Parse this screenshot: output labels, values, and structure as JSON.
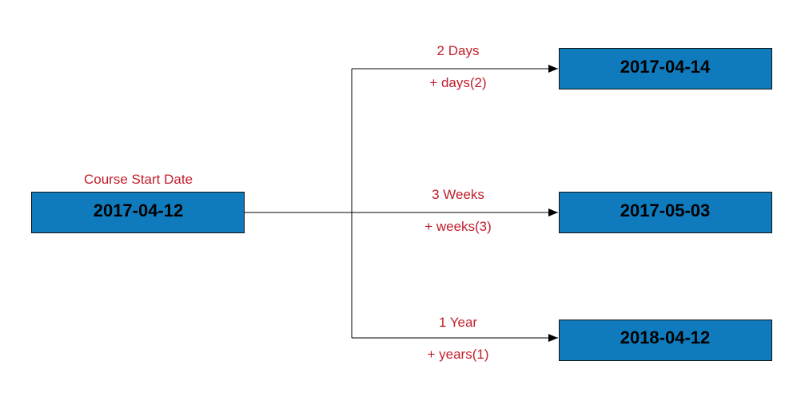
{
  "colors": {
    "box_fill": "#0f7bbd",
    "box_border": "#111111",
    "box_text": "#000000",
    "label": "#c0202e",
    "connector": "#000000"
  },
  "source": {
    "label": "Course Start Date",
    "date": "2017-04-12"
  },
  "targets": [
    {
      "date": "2017-04-14",
      "label_top": "2 Days",
      "label_bottom": "+ days(2)"
    },
    {
      "date": "2017-05-03",
      "label_top": "3 Weeks",
      "label_bottom": "+ weeks(3)"
    },
    {
      "date": "2018-04-12",
      "label_top": "1 Year",
      "label_bottom": "+ years(1)"
    }
  ]
}
